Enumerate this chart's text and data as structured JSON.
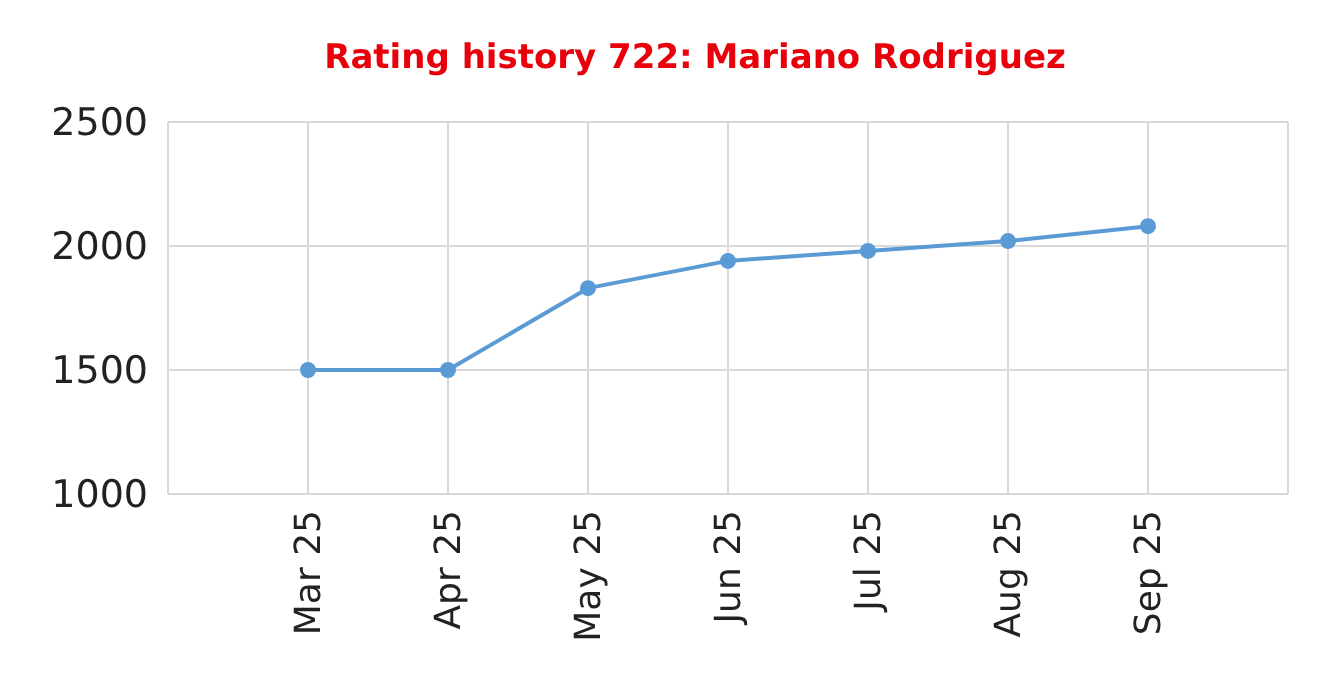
{
  "chart_data": {
    "type": "line",
    "title": "Rating history 722: Mariano Rodriguez",
    "categories": [
      "Mar 25",
      "Apr 25",
      "May 25",
      "Jun 25",
      "Jul 25",
      "Aug 25",
      "Sep 25"
    ],
    "series": [
      {
        "color": "#5b9bd5",
        "values": [
          1500,
          1500,
          1830,
          1940,
          1980,
          2020,
          2080
        ]
      }
    ],
    "ylim": [
      1000,
      2500
    ],
    "yticks": [
      1000,
      1500,
      2000,
      2500
    ],
    "grid": true,
    "marker": "circle",
    "line_style": "solid"
  }
}
